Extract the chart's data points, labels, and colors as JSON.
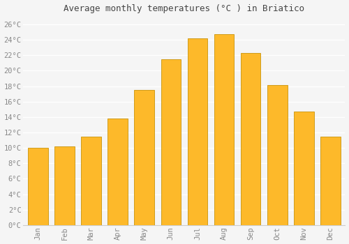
{
  "title": "Average monthly temperatures (°C ) in Briatico",
  "months": [
    "Jan",
    "Feb",
    "Mar",
    "Apr",
    "May",
    "Jun",
    "Jul",
    "Aug",
    "Sep",
    "Oct",
    "Nov",
    "Dec"
  ],
  "values": [
    10.0,
    10.2,
    11.5,
    13.8,
    17.5,
    21.5,
    24.2,
    24.7,
    22.3,
    18.1,
    14.7,
    11.5
  ],
  "bar_color": "#FDB92A",
  "bar_edge_color": "#C8940A",
  "background_color": "#F5F5F5",
  "plot_bg_color": "#F5F5F5",
  "grid_color": "#FFFFFF",
  "tick_label_color": "#888888",
  "title_color": "#444444",
  "ylim": [
    0,
    27
  ],
  "yticks": [
    0,
    2,
    4,
    6,
    8,
    10,
    12,
    14,
    16,
    18,
    20,
    22,
    24,
    26
  ],
  "ytick_labels": [
    "0°C",
    "2°C",
    "4°C",
    "6°C",
    "8°C",
    "10°C",
    "12°C",
    "14°C",
    "16°C",
    "18°C",
    "20°C",
    "22°C",
    "24°C",
    "26°C"
  ],
  "bar_width": 0.75,
  "title_fontsize": 9,
  "tick_fontsize": 7.5
}
